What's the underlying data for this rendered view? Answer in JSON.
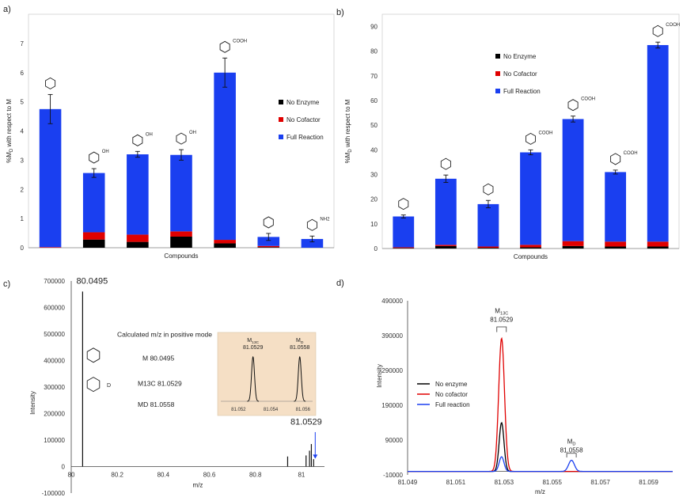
{
  "panel_labels": [
    "a)",
    "b)",
    "c)",
    "d)"
  ],
  "colors": {
    "no_enzyme": "#000000",
    "no_cofactor": "#e00000",
    "full_reaction": "#1a3ff0",
    "inset_bg": "#f5dfc5"
  },
  "chart_data": [
    {
      "type": "bar",
      "stacked": true,
      "xlabel": "Compounds",
      "ylabel": "%M_D with respect to M",
      "ylim": [
        0,
        8
      ],
      "yticks": [
        0,
        1,
        2,
        3,
        4,
        5,
        6,
        7
      ],
      "grid": false,
      "legend_position": "top-right",
      "categories": [
        "pyridine",
        "pyridine-4-propanoic acid",
        "pyrazole-3-carboxylic acid",
        "pyrazole-4-carboxylic acid",
        "indole-2-carboxylic acid",
        "pyrazole",
        "2-(pyridin-3-yl)ethanamine"
      ],
      "category_labels_printed": false,
      "series": [
        {
          "name": "No Enzyme",
          "values": [
            0.0,
            0.28,
            0.2,
            0.38,
            0.15,
            0.02,
            0.0
          ]
        },
        {
          "name": "No Cofactor",
          "values": [
            0.02,
            0.25,
            0.25,
            0.18,
            0.12,
            0.04,
            0.0
          ]
        },
        {
          "name": "Full Reaction",
          "values": [
            4.73,
            2.03,
            2.75,
            2.62,
            5.73,
            0.31,
            0.3
          ]
        }
      ],
      "error": [
        0.5,
        0.15,
        0.1,
        0.18,
        0.5,
        0.12,
        0.1
      ],
      "structure_labels": [
        "",
        "OH",
        "OH",
        "OH",
        "COOH",
        "",
        "NH2"
      ]
    },
    {
      "type": "bar",
      "stacked": true,
      "xlabel": "Compounds",
      "ylabel": "%M_D with respect to M",
      "ylim": [
        0,
        95
      ],
      "yticks": [
        0,
        10,
        20,
        30,
        40,
        50,
        60,
        70,
        80,
        90
      ],
      "grid": false,
      "legend_position": "center",
      "categories": [
        "4-methylthiazole",
        "benzimidazole",
        "quinoxaline",
        "indole-3-carboxylic acid",
        "picolinic acid",
        "nicotinic acid",
        "isonicotinic acid"
      ],
      "category_labels_printed": false,
      "series": [
        {
          "name": "No Enzyme",
          "values": [
            0.2,
            1.0,
            0.3,
            0.5,
            1.0,
            0.8,
            0.8
          ]
        },
        {
          "name": "No Cofactor",
          "values": [
            0.3,
            0.5,
            0.5,
            1.0,
            2.0,
            2.0,
            2.0
          ]
        },
        {
          "name": "Full Reaction",
          "values": [
            12.5,
            26.8,
            17.2,
            37.5,
            49.5,
            28.2,
            79.7
          ]
        }
      ],
      "error": [
        0.6,
        1.5,
        1.5,
        1.0,
        1.2,
        0.8,
        1.2
      ],
      "structure_labels": [
        "",
        "",
        "",
        "COOH",
        "COOH",
        "COOH",
        "COOH"
      ]
    },
    {
      "type": "line",
      "xlabel": "m/z",
      "ylabel": "Intensity",
      "xlim": [
        80,
        81.1
      ],
      "ylim": [
        -100000,
        700000
      ],
      "xticks": [
        "80",
        "80.2",
        "80.4",
        "80.6",
        "80.8",
        "81"
      ],
      "yticks": [
        "-100000",
        "0",
        "100000",
        "200000",
        "300000",
        "400000",
        "500000",
        "600000",
        "700000"
      ],
      "peaks": [
        {
          "x": 80.0495,
          "y": 660000
        },
        {
          "x": 80.94,
          "y": 38000
        },
        {
          "x": 81.02,
          "y": 42000
        },
        {
          "x": 81.035,
          "y": 60000
        },
        {
          "x": 81.043,
          "y": 85000
        },
        {
          "x": 81.0529,
          "y": 28000
        }
      ],
      "annotations": {
        "m_label": "M",
        "m_value": "80.0495",
        "m13c_label": "M13C",
        "m13c_value": "81.0529",
        "calc_title": "Calculated m/z in positive mode",
        "calc_m": "M  80.0495",
        "calc_m13c": "M13C 81.0529",
        "calc_md": "MD   81.0558",
        "deuterium": "D"
      },
      "inset": {
        "xticks": [
          "81.052",
          "81.054",
          "81.056"
        ],
        "xlim": [
          81.051,
          81.0565
        ],
        "peak1_label": "M13C",
        "peak1_value": "81.0529",
        "peak2_label": "MD",
        "peak2_value": "81.0558"
      }
    },
    {
      "type": "line",
      "xlabel": "m/z",
      "ylabel": "Intensity",
      "xlim": [
        81.049,
        81.06
      ],
      "ylim": [
        -10000,
        490000
      ],
      "xticks": [
        "81.049",
        "81.051",
        "81.053",
        "81.055",
        "81.057",
        "81.059"
      ],
      "yticks": [
        "-10000",
        "90000",
        "190000",
        "290000",
        "390000",
        "490000"
      ],
      "legend_position": "left",
      "series": [
        {
          "name": "No enzyme",
          "peaks": [
            {
              "x": 81.0529,
              "y": 140000,
              "w": 0.0001
            }
          ]
        },
        {
          "name": "No cofactor",
          "peaks": [
            {
              "x": 81.0529,
              "y": 382000,
              "w": 0.00012
            }
          ]
        },
        {
          "name": "Full reaction",
          "peaks": [
            {
              "x": 81.0529,
              "y": 42000,
              "w": 0.0001
            },
            {
              "x": 81.0558,
              "y": 32000,
              "w": 0.00012
            }
          ]
        }
      ],
      "annotations": {
        "m13c_label": "M13C",
        "m13c_value": "81.0529",
        "md_label": "MD",
        "md_value": "81.0558"
      }
    }
  ]
}
